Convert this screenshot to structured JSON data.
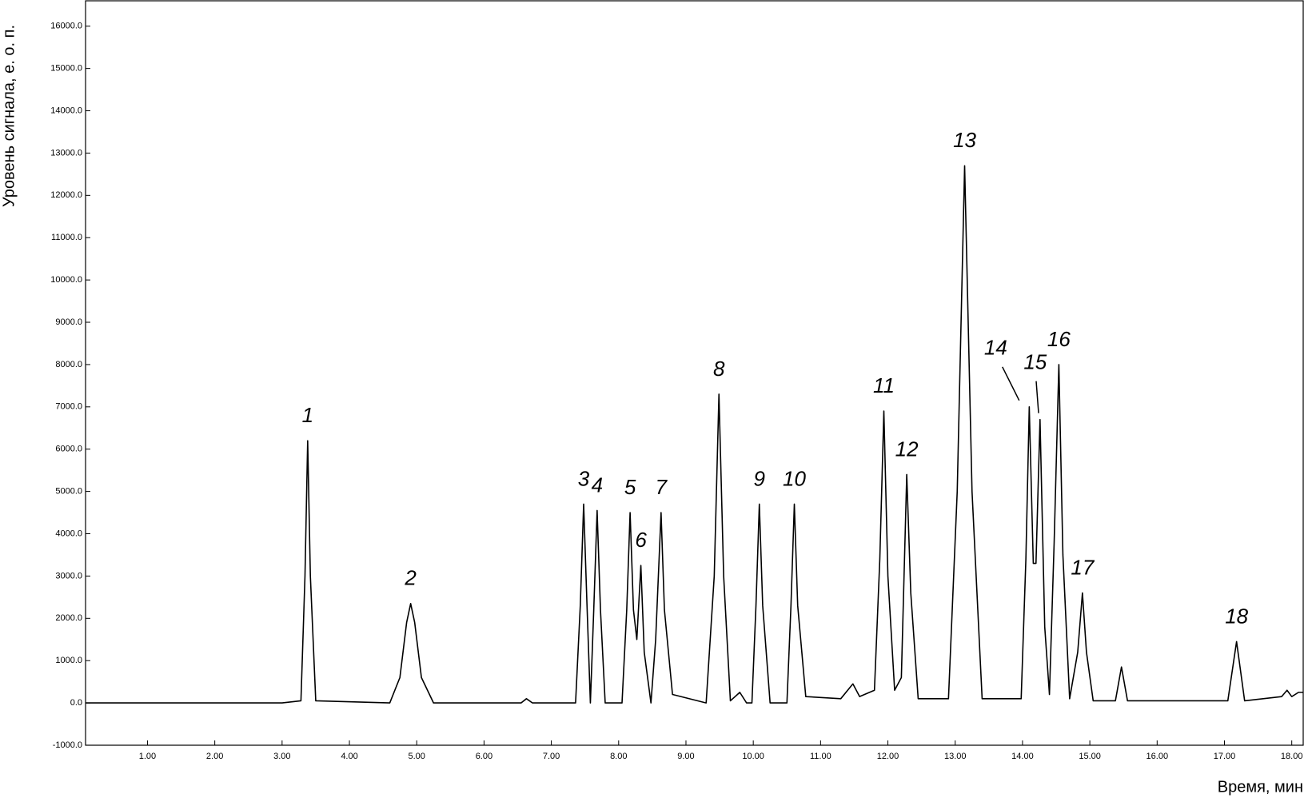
{
  "chart_data": {
    "type": "line",
    "y_label": "Уровень сигнала, е. о. п.",
    "x_label": "Время, мин",
    "color": "#000000",
    "xlim": [
      0.08,
      18.17
    ],
    "ylim": [
      -1000,
      16600
    ],
    "xticks": [
      {
        "value": 1,
        "label": "1.00"
      },
      {
        "value": 2,
        "label": "2.00"
      },
      {
        "value": 3,
        "label": "3.00"
      },
      {
        "value": 4,
        "label": "4.00"
      },
      {
        "value": 5,
        "label": "5.00"
      },
      {
        "value": 6,
        "label": "6.00"
      },
      {
        "value": 7,
        "label": "7.00"
      },
      {
        "value": 8,
        "label": "8.00"
      },
      {
        "value": 9,
        "label": "9.00"
      },
      {
        "value": 10,
        "label": "10.00"
      },
      {
        "value": 11,
        "label": "11.00"
      },
      {
        "value": 12,
        "label": "12.00"
      },
      {
        "value": 13,
        "label": "13.00"
      },
      {
        "value": 14,
        "label": "14.00"
      },
      {
        "value": 15,
        "label": "15.00"
      },
      {
        "value": 16,
        "label": "16.00"
      },
      {
        "value": 17,
        "label": "17.00"
      },
      {
        "value": 18,
        "label": "18.00"
      }
    ],
    "yticks": [
      {
        "value": -1000,
        "label": "-1000.0"
      },
      {
        "value": 0,
        "label": "0.0"
      },
      {
        "value": 1000,
        "label": "1000.0"
      },
      {
        "value": 2000,
        "label": "2000.0"
      },
      {
        "value": 3000,
        "label": "3000.0"
      },
      {
        "value": 4000,
        "label": "4000.0"
      },
      {
        "value": 5000,
        "label": "5000.0"
      },
      {
        "value": 6000,
        "label": "6000.0"
      },
      {
        "value": 7000,
        "label": "7000.0"
      },
      {
        "value": 8000,
        "label": "8000.0"
      },
      {
        "value": 9000,
        "label": "9000.0"
      },
      {
        "value": 10000,
        "label": "10000.0"
      },
      {
        "value": 11000,
        "label": "11000.0"
      },
      {
        "value": 12000,
        "label": "12000.0"
      },
      {
        "value": 13000,
        "label": "13000.0"
      },
      {
        "value": 14000,
        "label": "14000.0"
      },
      {
        "value": 15000,
        "label": "15000.0"
      },
      {
        "value": 16000,
        "label": "16000.0"
      }
    ],
    "x": [
      0.08,
      3.0,
      3.28,
      3.34,
      3.38,
      3.42,
      3.5,
      4.6,
      4.75,
      4.85,
      4.91,
      4.97,
      5.07,
      5.25,
      6.55,
      6.63,
      6.72,
      7.36,
      7.43,
      7.48,
      7.53,
      7.58,
      7.63,
      7.68,
      7.73,
      7.8,
      8.05,
      8.12,
      8.17,
      8.22,
      8.27,
      8.33,
      8.38,
      8.48,
      8.55,
      8.63,
      8.68,
      8.8,
      9.3,
      9.42,
      9.49,
      9.56,
      9.66,
      9.8,
      9.9,
      9.98,
      10.04,
      10.09,
      10.14,
      10.25,
      10.5,
      10.56,
      10.61,
      10.66,
      10.78,
      11.3,
      11.48,
      11.58,
      11.8,
      11.88,
      11.94,
      12.0,
      12.1,
      12.2,
      12.28,
      12.34,
      12.45,
      12.9,
      13.03,
      13.14,
      13.25,
      13.4,
      13.98,
      14.05,
      14.1,
      14.16,
      14.2,
      14.26,
      14.33,
      14.4,
      14.47,
      14.54,
      14.6,
      14.7,
      14.82,
      14.89,
      14.95,
      15.05,
      15.38,
      15.47,
      15.56,
      17.05,
      17.18,
      17.3,
      17.85,
      17.93,
      18.0,
      18.1,
      18.17
    ],
    "values": [
      0,
      0,
      50,
      3000,
      6200,
      3000,
      50,
      0,
      600,
      1900,
      2350,
      1900,
      600,
      0,
      0,
      100,
      0,
      0,
      2300,
      4700,
      2300,
      0,
      2200,
      4550,
      2200,
      0,
      0,
      2200,
      4500,
      2200,
      1500,
      3250,
      1200,
      0,
      1500,
      4500,
      2200,
      200,
      0,
      3000,
      7300,
      3000,
      50,
      250,
      0,
      0,
      2300,
      4700,
      2300,
      0,
      0,
      2300,
      4700,
      2300,
      150,
      100,
      450,
      150,
      300,
      3400,
      6900,
      3000,
      300,
      600,
      5400,
      2600,
      100,
      100,
      5000,
      12700,
      5000,
      100,
      100,
      3400,
      7000,
      3300,
      3300,
      6700,
      1800,
      200,
      3800,
      8000,
      3500,
      100,
      1200,
      2600,
      1200,
      50,
      50,
      850,
      50,
      50,
      1450,
      50,
      150,
      300,
      150,
      250,
      250
    ],
    "annotations": [
      {
        "text": "1",
        "x": 3.38,
        "y": 6200
      },
      {
        "text": "2",
        "x": 4.91,
        "y": 2350
      },
      {
        "text": "3",
        "x": 7.48,
        "y": 4700
      },
      {
        "text": "4",
        "x": 7.68,
        "y": 4550
      },
      {
        "text": "5",
        "x": 8.17,
        "y": 4500
      },
      {
        "text": "6",
        "x": 8.33,
        "y": 3250
      },
      {
        "text": "7",
        "x": 8.63,
        "y": 4500
      },
      {
        "text": "8",
        "x": 9.49,
        "y": 7300
      },
      {
        "text": "9",
        "x": 10.09,
        "y": 4700
      },
      {
        "text": "10",
        "x": 10.61,
        "y": 4700
      },
      {
        "text": "11",
        "x": 11.94,
        "y": 6900
      },
      {
        "text": "12",
        "x": 12.28,
        "y": 5400
      },
      {
        "text": "13",
        "x": 13.14,
        "y": 12700
      },
      {
        "text": "14",
        "x": 14.1,
        "y": 7000
      },
      {
        "text": "15",
        "x": 14.26,
        "y": 6700
      },
      {
        "text": "16",
        "x": 14.54,
        "y": 8000
      },
      {
        "text": "17",
        "x": 14.89,
        "y": 2600
      },
      {
        "text": "18",
        "x": 17.18,
        "y": 1450
      }
    ]
  }
}
